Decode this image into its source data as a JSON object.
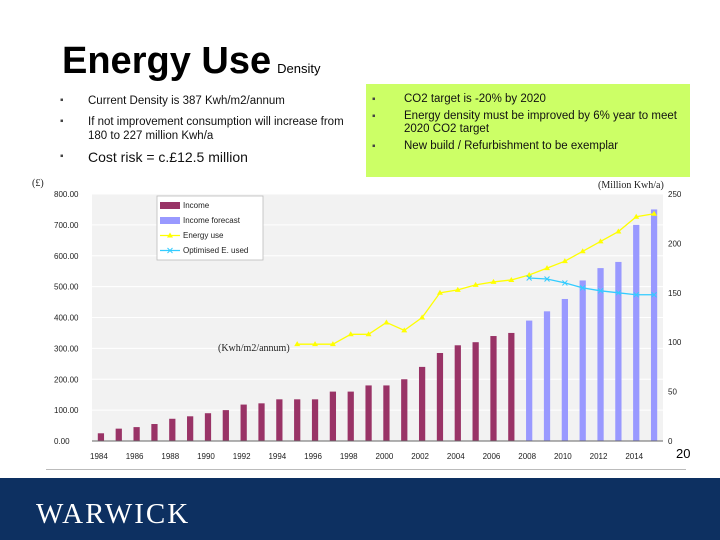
{
  "slide": {
    "title_main": "Energy Use",
    "title_sub": "Density",
    "bullets": [
      "Current Density is 387 Kwh/m2/annum",
      "If not improvement consumption will increase from 180 to 227 million Kwh/a",
      "Cost risk = c.£12.5 million"
    ],
    "green_box": [
      "CO2 target is -20% by 2020",
      "Energy density must be improved by 6% year to meet 2020 CO2 target",
      "New build / Refurbishment to be exemplar"
    ],
    "page_number": "20",
    "logo": "WARWICK",
    "colors": {
      "green_box": "#ccff66",
      "footer": "#0d3061"
    }
  },
  "chart_data": {
    "type": "bar",
    "left_axis_unit": "(£)",
    "right_axis_unit": "(Million Kwh/a)",
    "annotation": "(Kwh/m2/annum)",
    "ylim_left": [
      0,
      800
    ],
    "ylim_right": [
      0,
      250
    ],
    "left_ticks": [
      "0.00",
      "100.00",
      "200.00",
      "300.00",
      "400.00",
      "500.00",
      "600.00",
      "700.00",
      "800.00"
    ],
    "right_ticks": [
      "0",
      "50",
      "100",
      "150",
      "200",
      "250"
    ],
    "x_ticks": [
      "1984",
      "1986",
      "1988",
      "1990",
      "1992",
      "1994",
      "1996",
      "1998",
      "2000",
      "2002",
      "2004",
      "2006",
      "2008",
      "2010",
      "2012",
      "2014"
    ],
    "colors": {
      "income": "#993366",
      "forecast": "#9999ff",
      "energy": "#ffff00",
      "optimised": "#33ccff"
    },
    "series": [
      {
        "name": "Income",
        "x": [
          1984,
          1985,
          1986,
          1987,
          1988,
          1989,
          1990,
          1991,
          1992,
          1993,
          1994,
          1995,
          1996,
          1997,
          1998,
          1999,
          2000,
          2001,
          2002,
          2003,
          2004,
          2005,
          2006,
          2007
        ],
        "values": [
          25,
          40,
          45,
          55,
          72,
          80,
          90,
          100,
          118,
          122,
          135,
          135,
          135,
          160,
          160,
          180,
          180,
          200,
          240,
          285,
          310,
          320,
          340,
          350
        ]
      },
      {
        "name": "Income forecast",
        "x": [
          2008,
          2009,
          2010,
          2011,
          2012,
          2013,
          2014,
          2015
        ],
        "values": [
          390,
          420,
          460,
          520,
          560,
          580,
          700,
          750
        ]
      },
      {
        "name": "Energy use",
        "x": [
          1995,
          1996,
          1997,
          1998,
          1999,
          2000,
          2001,
          2002,
          2003,
          2004,
          2005,
          2006,
          2007,
          2008,
          2009,
          2010,
          2011,
          2012,
          2013,
          2014,
          2015
        ],
        "values": [
          98,
          98,
          98,
          108,
          108,
          120,
          112,
          125,
          150,
          153,
          158,
          161,
          163,
          168,
          175,
          182,
          192,
          202,
          212,
          227,
          230
        ]
      },
      {
        "name": "Optimised E. used",
        "x": [
          2008,
          2009,
          2010,
          2011,
          2012,
          2013,
          2014,
          2015
        ],
        "values": [
          165,
          164,
          160,
          155,
          152,
          150,
          148,
          148
        ]
      }
    ]
  }
}
